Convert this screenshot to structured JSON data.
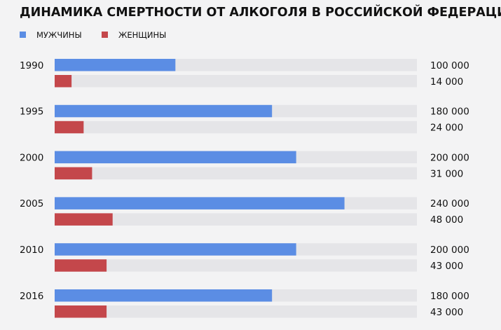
{
  "chart_data": {
    "type": "bar",
    "orientation": "horizontal",
    "title": "ДИНАМИКА СМЕРТНОСТИ ОТ АЛКОГОЛЯ В РОССИЙСКОЙ ФЕДЕРАЦИИ",
    "categories": [
      "1990",
      "1995",
      "2000",
      "2005",
      "2010",
      "2016"
    ],
    "xlim": [
      0,
      300000
    ],
    "series": [
      {
        "name": "МУЖЧИНЫ",
        "color": "#5b8de4",
        "values": [
          100000,
          180000,
          200000,
          240000,
          200000,
          180000
        ],
        "value_labels": [
          "100 000",
          "180 000",
          "200 000",
          "240 000",
          "200 000",
          "180 000"
        ]
      },
      {
        "name": "ЖЕНЩИНЫ",
        "color": "#c4474b",
        "values": [
          14000,
          24000,
          31000,
          48000,
          43000,
          43000
        ],
        "value_labels": [
          "14 000",
          "24 000",
          "31 000",
          "48 000",
          "43 000",
          "43 000"
        ]
      }
    ]
  }
}
